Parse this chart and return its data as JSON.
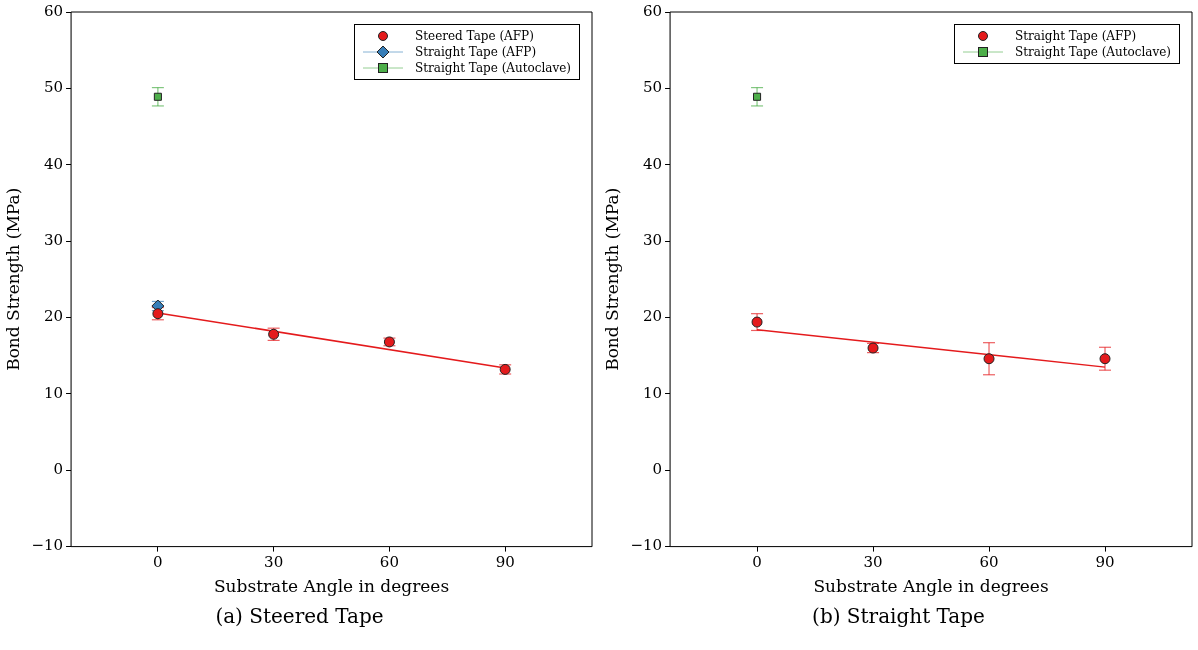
{
  "chart_data": [
    {
      "type": "scatter",
      "xlabel": "Substrate Angle in degrees",
      "ylabel": "Bond Strength (MPa)",
      "xlim": [
        -22.5,
        112.5
      ],
      "xticks": [
        0,
        30,
        60,
        90
      ],
      "ylim": [
        -10,
        60
      ],
      "yticks": [
        {
          "value": -10,
          "label": "−10"
        },
        0,
        10,
        20,
        30,
        40,
        50,
        60
      ],
      "grid": false,
      "legend": "top right",
      "annotations": [
        "(a) Steered Tape"
      ],
      "series": [
        {
          "name": "Steered Tape (AFP)",
          "color": "#e41a1c",
          "marker": "circle",
          "x": [
            0,
            30,
            60,
            90
          ],
          "values": [
            20.5,
            17.8,
            16.8,
            13.2
          ],
          "errors": [
            0.8,
            0.8,
            0.5,
            0.6
          ]
        },
        {
          "name": "Straight Tape (AFP)",
          "color": "#377eb8",
          "marker": "diamond",
          "x": [
            0
          ],
          "values": [
            21.5
          ],
          "errors": [
            0.6
          ]
        },
        {
          "name": "Straight Tape (Autoclave)",
          "color": "#4daf4a",
          "marker": "square",
          "x": [
            0
          ],
          "values": [
            48.9
          ],
          "errors": [
            1.2
          ]
        },
        {
          "type": "line",
          "color": "#e41a1c",
          "marker": "none",
          "x": [
            0,
            90
          ],
          "values": [
            20.6,
            13.4
          ]
        }
      ]
    },
    {
      "type": "scatter",
      "xlabel": "Substrate Angle in degrees",
      "ylabel": "Bond Strength (MPa)",
      "xlim": [
        -22.5,
        112.5
      ],
      "xticks": [
        0,
        30,
        60,
        90
      ],
      "ylim": [
        -10,
        60
      ],
      "yticks": [
        {
          "value": -10,
          "label": "−10"
        },
        0,
        10,
        20,
        30,
        40,
        50,
        60
      ],
      "grid": false,
      "legend": "top right",
      "annotations": [
        "(b) Straight Tape"
      ],
      "series": [
        {
          "name": "Straight Tape (AFP)",
          "color": "#e41a1c",
          "marker": "circle",
          "x": [
            0,
            30,
            60,
            90
          ],
          "values": [
            19.4,
            16.0,
            14.6,
            14.6
          ],
          "errors": [
            1.1,
            0.6,
            2.1,
            1.5
          ]
        },
        {
          "name": "Straight Tape (Autoclave)",
          "color": "#4daf4a",
          "marker": "square",
          "x": [
            0
          ],
          "values": [
            48.9
          ],
          "errors": [
            1.2
          ]
        },
        {
          "type": "line",
          "color": "#e41a1c",
          "marker": "none",
          "x": [
            0,
            90
          ],
          "values": [
            18.4,
            13.5
          ]
        }
      ]
    }
  ]
}
